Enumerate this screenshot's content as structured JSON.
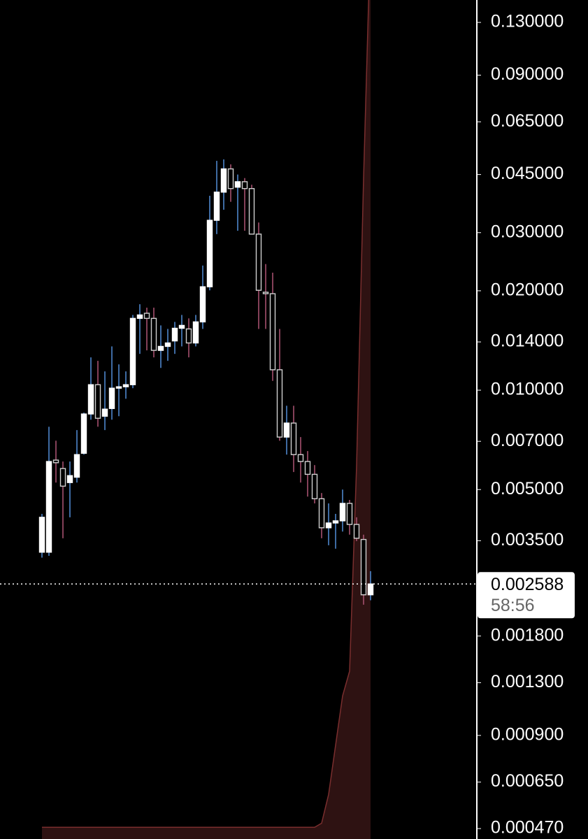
{
  "chart_data": {
    "type": "candlestick",
    "log_scale": true,
    "ylim": [
      0.000437,
      0.152
    ],
    "yticks": [
      {
        "value": 0.13,
        "label": "0.130000"
      },
      {
        "value": 0.09,
        "label": "0.090000"
      },
      {
        "value": 0.065,
        "label": "0.065000"
      },
      {
        "value": 0.045,
        "label": "0.045000"
      },
      {
        "value": 0.03,
        "label": "0.030000"
      },
      {
        "value": 0.02,
        "label": "0.020000"
      },
      {
        "value": 0.014,
        "label": "0.014000"
      },
      {
        "value": 0.01,
        "label": "0.010000"
      },
      {
        "value": 0.007,
        "label": "0.007000"
      },
      {
        "value": 0.005,
        "label": "0.005000"
      },
      {
        "value": 0.0035,
        "label": "0.003500"
      },
      {
        "value": 0.0018,
        "label": "0.001800"
      },
      {
        "value": 0.0013,
        "label": "0.001300"
      },
      {
        "value": 0.0009,
        "label": "0.000900"
      },
      {
        "value": 0.00065,
        "label": "0.000650"
      },
      {
        "value": 0.00047,
        "label": "0.000470"
      }
    ],
    "open": [
      0.00323,
      0.00323,
      0.00614,
      0.00579,
      0.00525,
      0.00545,
      0.00644,
      0.00847,
      0.01039,
      0.00834,
      0.0088,
      0.01014,
      0.01024,
      0.01039,
      0.0165,
      0.0171,
      0.0165,
      0.0132,
      0.01357,
      0.0141,
      0.0154,
      0.01533,
      0.0139,
      0.0161,
      0.02057,
      0.0327,
      0.0398,
      0.0468,
      0.0412,
      0.0428,
      0.0408,
      0.0297,
      0.0198,
      0.0196,
      0.01153,
      0.00721,
      0.00795,
      0.00638,
      0.00608,
      0.00556,
      0.00469,
      0.00383,
      0.00396,
      0.00402,
      0.00454,
      0.00392,
      0.00353,
      0.0024
    ],
    "high": [
      0.00422,
      0.00775,
      0.00703,
      0.00608,
      0.00608,
      0.00757,
      0.00855,
      0.01257,
      0.01227,
      0.0114,
      0.01357,
      0.01197,
      0.0114,
      0.0169,
      0.01821,
      0.01778,
      0.01778,
      0.01571,
      0.01533,
      0.0161,
      0.0169,
      0.0165,
      0.0169,
      0.02385,
      0.0388,
      0.0495,
      0.05,
      0.0483,
      0.045,
      0.0439,
      0.0419,
      0.0322,
      0.0241,
      0.0227,
      0.01533,
      0.00897,
      0.00897,
      0.00721,
      0.00654,
      0.00593,
      0.00488,
      0.00454,
      0.00422,
      0.005,
      0.00465,
      0.00412,
      0.00365,
      0.00283
    ],
    "low": [
      0.00311,
      0.00315,
      0.00525,
      0.00356,
      0.00412,
      0.00525,
      0.00638,
      0.00814,
      0.00775,
      0.00757,
      0.00814,
      0.00834,
      0.00942,
      0.01014,
      0.01288,
      0.0132,
      0.01257,
      0.01168,
      0.01227,
      0.01288,
      0.01357,
      0.01257,
      0.01357,
      0.01533,
      0.02007,
      0.0297,
      0.0352,
      0.0372,
      0.0304,
      0.0304,
      0.0297,
      0.01533,
      0.01533,
      0.01067,
      0.00703,
      0.00638,
      0.00565,
      0.00525,
      0.00476,
      0.00454,
      0.00356,
      0.00339,
      0.00331,
      0.00373,
      0.00365,
      0.00349,
      0.00224,
      0.00231
    ],
    "close": [
      0.00412,
      0.00608,
      0.00603,
      0.00512,
      0.00551,
      0.00638,
      0.00847,
      0.01039,
      0.00822,
      0.00876,
      0.01014,
      0.01024,
      0.01039,
      0.0165,
      0.0169,
      0.0165,
      0.0132,
      0.01357,
      0.0139,
      0.0154,
      0.01571,
      0.0139,
      0.0161,
      0.02057,
      0.0327,
      0.0398,
      0.0468,
      0.0408,
      0.0428,
      0.0408,
      0.0297,
      0.02007,
      0.0196,
      0.01153,
      0.00721,
      0.00795,
      0.00638,
      0.00608,
      0.00556,
      0.00469,
      0.00383,
      0.00396,
      0.00402,
      0.00454,
      0.00392,
      0.00356,
      0.0024,
      0.002588
    ],
    "volume": [
      1,
      1,
      1,
      1,
      1,
      1,
      1,
      1,
      1,
      1,
      1,
      1,
      1,
      1,
      1,
      1,
      1,
      1,
      1,
      1,
      1,
      1,
      1,
      1,
      1,
      1,
      1,
      1,
      1,
      1,
      1,
      1,
      1,
      1,
      1,
      1,
      1,
      1,
      1,
      1,
      1.5,
      5,
      11,
      17,
      20,
      45,
      80,
      110
    ],
    "volume_lim": [
      0,
      100
    ],
    "volume_color": "#2e1212",
    "volume_line_color": "#7a2e2e",
    "up_color": "#ffffff",
    "down_color": "#000000",
    "up_wick_color": "#4d86cc",
    "down_wick_color": "#a5506e",
    "last_price": 0.002588,
    "countdown": "58:56"
  }
}
